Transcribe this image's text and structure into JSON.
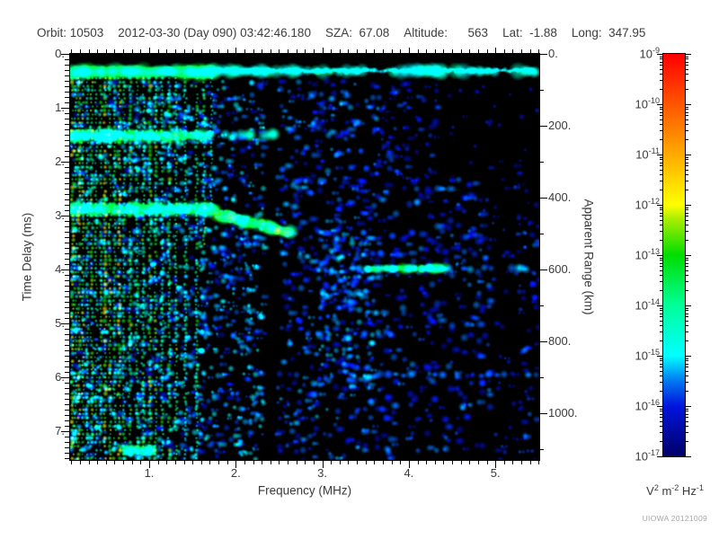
{
  "header": {
    "display_fields": [
      "Orbit: 10503",
      "2012-03-30 (Day 090) 03:42:46.180",
      "SZA:  67.08",
      "Altitude:      563",
      "Lat:  -1.88",
      "Long:  347.95"
    ],
    "parsed": {
      "orbit": "10503",
      "date": "2012-03-30",
      "day_of_year": "090",
      "time": "03:42:46.180",
      "sza": "67.08",
      "altitude": "563",
      "lat": "-1.88",
      "long": "347.95"
    }
  },
  "watermark": "UIOWA 20121009",
  "chart_data": {
    "type": "heatmap",
    "subtype": "radar-sounder-ionogram-spectrogram",
    "x_axis": {
      "label": "Frequency (MHz)",
      "min": 0.086,
      "max": 5.507,
      "major_ticks": [
        1,
        2,
        3,
        4,
        5
      ],
      "major_tick_labels": [
        "1.",
        "2.",
        "3.",
        "4.",
        "5."
      ],
      "minor_tick_step": 0.1
    },
    "y_axis_left": {
      "label": "Time Delay (ms)",
      "min": 0,
      "max": 7.53,
      "major_ticks": [
        0,
        1,
        2,
        3,
        4,
        5,
        6,
        7
      ],
      "major_tick_labels": [
        "0.",
        "1.",
        "2.",
        "3.",
        "4.",
        "5.",
        "6.",
        "7."
      ],
      "minor_tick_step": 0.1,
      "direction": "downward"
    },
    "y_axis_right": {
      "label": "Apparent Range (km)",
      "major_ticks": [
        0,
        200,
        400,
        600,
        800,
        1000
      ],
      "major_tick_labels": [
        "0.",
        "200.",
        "400.",
        "600.",
        "800.",
        "1000."
      ],
      "minor_tick_step": 100,
      "km_per_ms": 150
    },
    "colorbar": {
      "scale": "log",
      "top_value_exponent": -9,
      "bottom_value_exponent": -17,
      "tick_exponents": [
        -9,
        -10,
        -11,
        -12,
        -13,
        -14,
        -15,
        -16,
        -17
      ],
      "unit_parts": [
        {
          "base": "V",
          "exp": "2"
        },
        {
          "base": "m",
          "exp": "-2"
        },
        {
          "base": "Hz",
          "exp": "-1"
        }
      ],
      "gradient_stops": [
        {
          "frac": 0.0,
          "color": "#000066"
        },
        {
          "frac": 0.125,
          "color": "#0014dd"
        },
        {
          "frac": 0.1875,
          "color": "#0078f0"
        },
        {
          "frac": 0.25,
          "color": "#00ffff"
        },
        {
          "frac": 0.375,
          "color": "#00ff99"
        },
        {
          "frac": 0.5,
          "color": "#00dd00"
        },
        {
          "frac": 0.59,
          "color": "#aaee00"
        },
        {
          "frac": 0.625,
          "color": "#ffff00"
        },
        {
          "frac": 0.75,
          "color": "#ffaa00"
        },
        {
          "frac": 0.875,
          "color": "#ff5500"
        },
        {
          "frac": 1.0,
          "color": "#ff0000"
        }
      ]
    },
    "features": {
      "note": "Intensity v is normalized: 0 = 1e-17, 1 = 1e-9 V^2 m^-2 Hz^-1. f in MHz, t in ms.",
      "seed": 12345,
      "blackout_top_ms": [
        0,
        0.24
      ],
      "noise_zones": [
        {
          "f0": 0.09,
          "f1": 2.33,
          "t0": 0.5,
          "t1": 7.53,
          "count": 1600,
          "v0": 0.08,
          "v1": 0.26,
          "r0": 2,
          "r1": 4.5
        },
        {
          "f0": 0.09,
          "f1": 1.65,
          "t0": 0.5,
          "t1": 7.53,
          "count": 260,
          "v0": 0.2,
          "v1": 0.32,
          "r0": 2,
          "r1": 3.5
        },
        {
          "f0": 2.47,
          "f1": 3.65,
          "t0": 0.5,
          "t1": 7.53,
          "count": 560,
          "v0": 0.07,
          "v1": 0.22,
          "r0": 2.5,
          "r1": 5
        },
        {
          "f0": 2.95,
          "f1": 3.6,
          "t0": 3.2,
          "t1": 6.2,
          "count": 140,
          "v0": 0.12,
          "v1": 0.24,
          "r0": 2.5,
          "r1": 5
        },
        {
          "f0": 3.65,
          "f1": 4.95,
          "t0": 2.3,
          "t1": 7.53,
          "count": 330,
          "v0": 0.06,
          "v1": 0.2,
          "r0": 2.5,
          "r1": 5.5,
          "exclude": {
            "f0": 4.55,
            "f1": 5.5,
            "t0": 6.55,
            "t1": 7.53,
            "p": 0.7
          }
        },
        {
          "f0": 4.95,
          "f1": 5.28,
          "t0": 2.3,
          "t1": 7.53,
          "count": 45,
          "v0": 0.06,
          "v1": 0.16,
          "r0": 2,
          "r1": 4
        },
        {
          "f0": 5.28,
          "f1": 5.5,
          "t0": 2.3,
          "t1": 7.53,
          "count": 60,
          "v0": 0.07,
          "v1": 0.18,
          "r0": 2,
          "r1": 4.5
        },
        {
          "f0": 3.65,
          "f1": 4.35,
          "t0": 0.5,
          "t1": 2.3,
          "count": 85,
          "v0": 0.06,
          "v1": 0.17,
          "r0": 2,
          "r1": 4.5
        },
        {
          "f0": 4.35,
          "f1": 5.5,
          "t0": 0.5,
          "t1": 2.3,
          "count": 24,
          "v0": 0.05,
          "v1": 0.14,
          "r0": 2,
          "r1": 4
        }
      ],
      "plasma_harmonic_stripes": [
        {
          "f": 0.115,
          "v": 0.52,
          "w": 0.035,
          "t0": 0.45,
          "t1": 7.53
        },
        {
          "f": 0.15,
          "v": 0.38,
          "w": 0.025,
          "t0": 0.45,
          "t1": 7.53
        },
        {
          "f": 0.19,
          "v": 0.55,
          "w": 0.03,
          "t0": 0.45,
          "t1": 7.53
        },
        {
          "f": 0.235,
          "v": 0.5,
          "w": 0.025,
          "t0": 0.45,
          "t1": 7.53
        },
        {
          "f": 0.285,
          "v": 0.36,
          "w": 0.03,
          "t0": 0.45,
          "t1": 7.53
        },
        {
          "f": 0.335,
          "v": 0.48,
          "w": 0.03,
          "t0": 0.45,
          "t1": 7.53
        },
        {
          "f": 0.385,
          "v": 0.38,
          "w": 0.025,
          "t0": 0.45,
          "t1": 7.53
        },
        {
          "f": 0.44,
          "v": 0.42,
          "w": 0.03,
          "t0": 0.45,
          "t1": 7.53
        },
        {
          "f": 0.49,
          "v": 0.56,
          "w": 0.035,
          "t0": 0.45,
          "t1": 7.53
        },
        {
          "f": 0.545,
          "v": 0.5,
          "w": 0.03,
          "t0": 0.45,
          "t1": 7.53
        },
        {
          "f": 0.6,
          "v": 0.4,
          "w": 0.03,
          "t0": 0.45,
          "t1": 7.53
        },
        {
          "f": 0.655,
          "v": 0.55,
          "w": 0.032,
          "t0": 0.45,
          "t1": 7.53
        },
        {
          "f": 0.71,
          "v": 0.38,
          "w": 0.03,
          "t0": 0.45,
          "t1": 7.53
        },
        {
          "f": 0.78,
          "v": 0.44,
          "w": 0.035,
          "t0": 0.45,
          "t1": 7.53
        },
        {
          "f": 0.86,
          "v": 0.38,
          "w": 0.03,
          "t0": 0.45,
          "t1": 7.53
        },
        {
          "f": 0.935,
          "v": 0.42,
          "w": 0.03,
          "t0": 0.45,
          "t1": 7.53
        },
        {
          "f": 1.01,
          "v": 0.46,
          "w": 0.035,
          "t0": 0.45,
          "t1": 7.53
        },
        {
          "f": 1.075,
          "v": 0.44,
          "w": 0.03,
          "t0": 0.45,
          "t1": 7.53
        },
        {
          "f": 1.15,
          "v": 0.38,
          "w": 0.03,
          "t0": 0.45,
          "t1": 7.53
        },
        {
          "f": 1.23,
          "v": 0.42,
          "w": 0.035,
          "t0": 0.45,
          "t1": 7.53
        },
        {
          "f": 1.31,
          "v": 0.46,
          "w": 0.025,
          "t0": 0.45,
          "t1": 7.53
        },
        {
          "f": 1.42,
          "v": 0.36,
          "w": 0.03,
          "t0": 0.45,
          "t1": 7.53
        },
        {
          "f": 1.55,
          "v": 0.38,
          "w": 0.03,
          "t0": 0.45,
          "t1": 7.53
        },
        {
          "f": 1.635,
          "v": 0.42,
          "w": 0.03,
          "t0": 0.45,
          "t1": 3.6
        },
        {
          "f": 1.72,
          "v": 0.34,
          "w": 0.025,
          "t0": 0.45,
          "t1": 2.8
        }
      ],
      "horizontal_bands": [
        {
          "name": "first-echo-band-left",
          "f0": 0.09,
          "f1": 1.75,
          "t0": 0.33,
          "t1": 0.33,
          "v": 0.42,
          "th": 0.2,
          "step": 0.04,
          "skip": 0
        },
        {
          "name": "first-echo-band-right",
          "f0": 1.75,
          "f1": 5.45,
          "t0": 0.32,
          "t1": 0.32,
          "v": 0.3,
          "th": 0.18,
          "step": 0.09,
          "skip": 0.2
        },
        {
          "name": "first-echo-thin-line",
          "f0": 1.75,
          "f1": 5.45,
          "t0": 0.31,
          "t1": 0.31,
          "v": 0.26,
          "th": 0.06,
          "step": 0.03,
          "skip": 0
        },
        {
          "name": "band-1p5ms-left",
          "f0": 0.09,
          "f1": 1.7,
          "t0": 1.52,
          "t1": 1.52,
          "v": 0.4,
          "th": 0.17,
          "step": 0.045,
          "skip": 0
        },
        {
          "name": "band-1p5ms-right",
          "f0": 1.7,
          "f1": 2.47,
          "t0": 1.5,
          "t1": 1.5,
          "v": 0.3,
          "th": 0.14,
          "step": 0.09,
          "skip": 0.2
        },
        {
          "name": "ionosphere-echo-flat",
          "f0": 0.09,
          "f1": 1.78,
          "t0": 2.88,
          "t1": 2.88,
          "v": 0.43,
          "th": 0.18,
          "step": 0.045,
          "skip": 0
        },
        {
          "name": "ionosphere-echo-cusp",
          "f0": 1.78,
          "f1": 2.64,
          "t0": 2.98,
          "t1": 3.32,
          "v": 0.45,
          "th": 0.16,
          "step": 0.04,
          "skip": 0
        },
        {
          "name": "range-line-600km",
          "f0": 3.52,
          "f1": 4.42,
          "t0": 3.98,
          "t1": 3.98,
          "v": 0.4,
          "th": 0.13,
          "step": 0.05,
          "skip": 0
        },
        {
          "name": "range-line-600km-faint",
          "f0": 2.95,
          "f1": 5.45,
          "t0": 3.98,
          "t1": 3.98,
          "v": 0.2,
          "th": 0.1,
          "step": 0.08,
          "skip": 0.3
        },
        {
          "name": "faint-streak-5p95ms",
          "f0": 3.3,
          "f1": 5.45,
          "t0": 5.95,
          "t1": 5.95,
          "v": 0.17,
          "th": 0.1,
          "step": 0.09,
          "skip": 0.35
        },
        {
          "name": "bottom-left-band",
          "f0": 0.72,
          "f1": 1.05,
          "t0": 7.35,
          "t1": 7.35,
          "v": 0.35,
          "th": 0.15,
          "step": 0.05,
          "skip": 0
        }
      ],
      "bright_spots": [
        {
          "f": 2.95,
          "t": 0.33,
          "v": 0.44,
          "r": 5
        },
        {
          "f": 3.1,
          "t": 0.33,
          "v": 0.42,
          "r": 5
        },
        {
          "f": 3.28,
          "t": 0.34,
          "v": 0.4,
          "r": 4
        },
        {
          "f": 0.62,
          "t": 2.88,
          "v": 0.5,
          "r": 5
        },
        {
          "f": 1.1,
          "t": 2.9,
          "v": 0.48,
          "r": 4
        },
        {
          "f": 1.45,
          "t": 2.92,
          "v": 0.52,
          "r": 5
        },
        {
          "f": 1.9,
          "t": 2.95,
          "v": 0.5,
          "r": 5
        },
        {
          "f": 2.3,
          "t": 3.12,
          "v": 0.52,
          "r": 5
        },
        {
          "f": 2.48,
          "t": 3.28,
          "v": 0.6,
          "r": 5
        },
        {
          "f": 2.6,
          "t": 3.33,
          "v": 0.5,
          "r": 4
        },
        {
          "f": 4.15,
          "t": 3.98,
          "v": 0.45,
          "r": 5
        }
      ],
      "dark_column_mhz": [
        2.35,
        2.46
      ]
    }
  }
}
